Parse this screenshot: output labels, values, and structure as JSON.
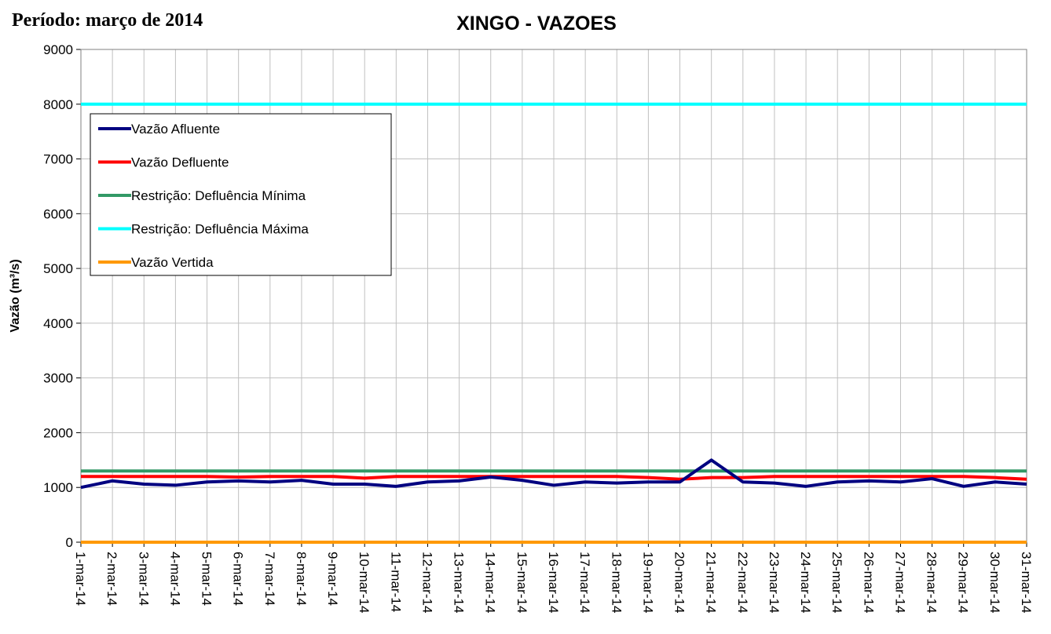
{
  "chart_data": {
    "type": "line",
    "title": "XINGO - VAZOES",
    "subtitle": "Período: março de 2014",
    "y_label": "Vazão (m³/s)",
    "categories": [
      "1-mar-14",
      "2-mar-14",
      "3-mar-14",
      "4-mar-14",
      "5-mar-14",
      "6-mar-14",
      "7-mar-14",
      "8-mar-14",
      "9-mar-14",
      "10-mar-14",
      "11-mar-14",
      "12-mar-14",
      "13-mar-14",
      "14-mar-14",
      "15-mar-14",
      "16-mar-14",
      "17-mar-14",
      "18-mar-14",
      "19-mar-14",
      "20-mar-14",
      "21-mar-14",
      "22-mar-14",
      "23-mar-14",
      "24-mar-14",
      "25-mar-14",
      "26-mar-14",
      "27-mar-14",
      "28-mar-14",
      "29-mar-14",
      "30-mar-14",
      "31-mar-14"
    ],
    "series": [
      {
        "name": "Vazão Afluente",
        "color": "#000080",
        "values": [
          1000,
          1120,
          1060,
          1040,
          1100,
          1120,
          1100,
          1130,
          1060,
          1060,
          1020,
          1100,
          1120,
          1190,
          1130,
          1040,
          1100,
          1080,
          1100,
          1100,
          1500,
          1100,
          1080,
          1020,
          1100,
          1120,
          1100,
          1160,
          1020,
          1100,
          1060
        ]
      },
      {
        "name": "Vazão Defluente",
        "color": "#ff0000",
        "values": [
          1200,
          1200,
          1200,
          1200,
          1200,
          1190,
          1200,
          1200,
          1200,
          1170,
          1200,
          1200,
          1200,
          1200,
          1200,
          1200,
          1200,
          1200,
          1180,
          1150,
          1180,
          1180,
          1200,
          1200,
          1200,
          1200,
          1200,
          1200,
          1200,
          1180,
          1150
        ]
      },
      {
        "name": "Restrição: Defluência Mínima",
        "color": "#339966",
        "values": [
          1300,
          1300,
          1300,
          1300,
          1300,
          1300,
          1300,
          1300,
          1300,
          1300,
          1300,
          1300,
          1300,
          1300,
          1300,
          1300,
          1300,
          1300,
          1300,
          1300,
          1300,
          1300,
          1300,
          1300,
          1300,
          1300,
          1300,
          1300,
          1300,
          1300,
          1300
        ]
      },
      {
        "name": "Restrição: Defluência Máxima",
        "color": "#00ffff",
        "values": [
          8000,
          8000,
          8000,
          8000,
          8000,
          8000,
          8000,
          8000,
          8000,
          8000,
          8000,
          8000,
          8000,
          8000,
          8000,
          8000,
          8000,
          8000,
          8000,
          8000,
          8000,
          8000,
          8000,
          8000,
          8000,
          8000,
          8000,
          8000,
          8000,
          8000,
          8000
        ]
      },
      {
        "name": "Vazão Vertida",
        "color": "#ff9900",
        "values": [
          0,
          0,
          0,
          0,
          0,
          0,
          0,
          0,
          0,
          0,
          0,
          0,
          0,
          0,
          0,
          0,
          0,
          0,
          0,
          0,
          0,
          0,
          0,
          0,
          0,
          0,
          0,
          0,
          0,
          0,
          0
        ]
      }
    ],
    "ylim": [
      0,
      9000
    ],
    "yticks": [
      0,
      1000,
      2000,
      3000,
      4000,
      5000,
      6000,
      7000,
      8000,
      9000
    ],
    "grid": true,
    "legend": "upper left"
  }
}
